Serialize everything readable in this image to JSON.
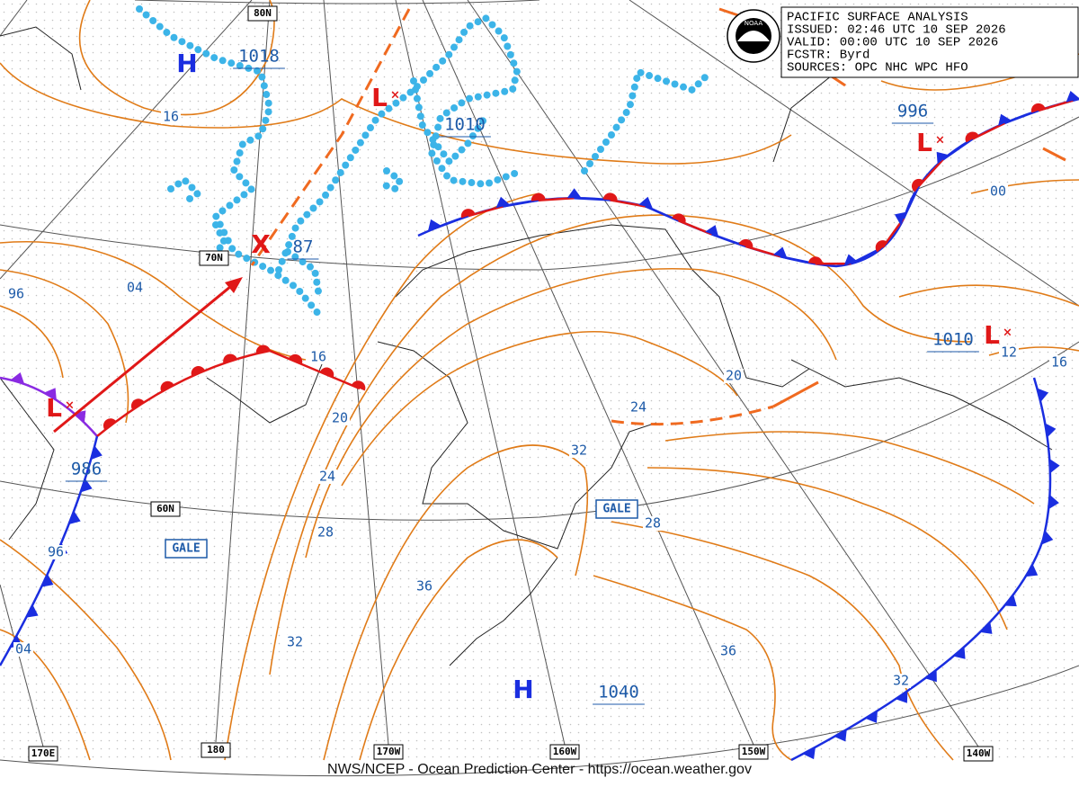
{
  "header": {
    "title": "PACIFIC SURFACE ANALYSIS",
    "issued": "ISSUED: 02:46 UTC 10 SEP 2026",
    "valid": "VALID: 00:00 UTC 10 SEP 2026",
    "forecaster": "FCSTR: Byrd",
    "sources": "SOURCES: OPC NHC WPC HFO"
  },
  "logo": "NOAA",
  "grid_labels": [
    "80N",
    "70N",
    "60N",
    "170E",
    "180",
    "170W",
    "160W",
    "150W",
    "140W"
  ],
  "systems": [
    {
      "symbol": "H",
      "pressure": "1018"
    },
    {
      "symbol": "L",
      "pressure": "1010"
    },
    {
      "symbol": "X",
      "pressure": "87"
    },
    {
      "symbol": "L",
      "pressure": "996"
    },
    {
      "symbol": "L",
      "pressure": "1010"
    },
    {
      "symbol": "L",
      "pressure": "986"
    },
    {
      "symbol": "H",
      "pressure": "1040"
    }
  ],
  "isobar_labels": [
    "16",
    "04",
    "96",
    "16",
    "20",
    "24",
    "28",
    "36",
    "32",
    "32",
    "24",
    "20",
    "28",
    "36",
    "32",
    "00",
    "12",
    "16",
    "96",
    "04"
  ],
  "warnings": [
    "GALE",
    "GALE"
  ],
  "footer": "NWS/NCEP - Ocean Prediction Center - https://ocean.weather.gov"
}
